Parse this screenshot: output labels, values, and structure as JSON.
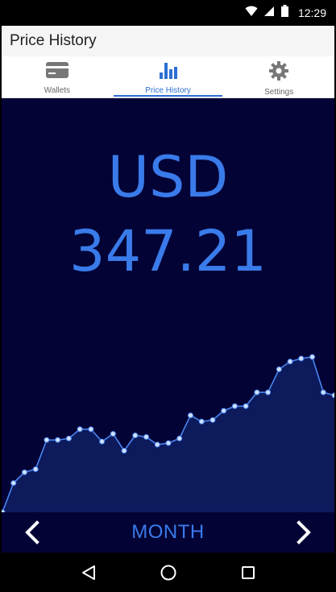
{
  "status_bar": {
    "time": "12:29"
  },
  "app_bar": {
    "title": "Price History"
  },
  "tabs": [
    {
      "label": "Wallets",
      "icon": "credit-card-icon",
      "active": false
    },
    {
      "label": "Price History",
      "icon": "bar-chart-icon",
      "active": true
    },
    {
      "label": "Settings",
      "icon": "gear-icon",
      "active": false
    }
  ],
  "price_display": {
    "currency": "USD",
    "value": "347.21"
  },
  "period_selector": {
    "label": "MONTH",
    "prev_icon": "chevron-left-icon",
    "next_icon": "chevron-right-icon"
  },
  "colors": {
    "accent": "#3a7bea",
    "background": "#030336",
    "chart_fill": "#0d1a5c",
    "line": "#4a86f0"
  },
  "chart_data": {
    "type": "area",
    "values": [
      250,
      269,
      276,
      278,
      297,
      297,
      298,
      304,
      304,
      296,
      301,
      290,
      300,
      299,
      294,
      295,
      298,
      313,
      309,
      310,
      316,
      319,
      319,
      328,
      328,
      343,
      348,
      350,
      351,
      328,
      326
    ],
    "ylim": [
      250,
      360
    ],
    "grid": false,
    "markers": true
  }
}
